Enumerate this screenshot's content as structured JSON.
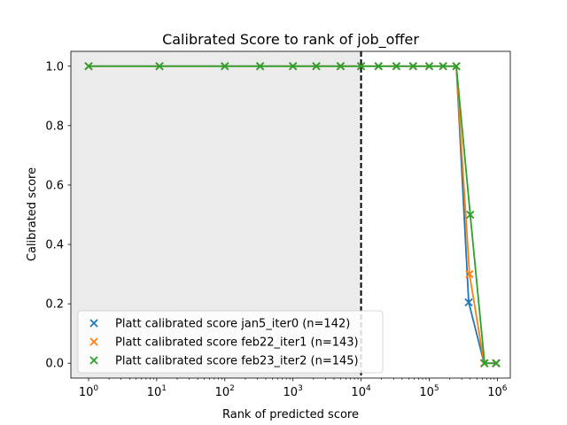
{
  "chart_data": {
    "type": "line",
    "title": "Calibrated Score to rank of job_offer",
    "xlabel": "Rank of predicted score",
    "ylabel": "Calibrated score",
    "xscale": "log",
    "xlim": [
      0.55,
      1550000
    ],
    "ylim": [
      -0.05,
      1.05
    ],
    "xticks": [
      {
        "value": 1,
        "base": "10",
        "exp": "0"
      },
      {
        "value": 10,
        "base": "10",
        "exp": "1"
      },
      {
        "value": 100,
        "base": "10",
        "exp": "2"
      },
      {
        "value": 1000,
        "base": "10",
        "exp": "3"
      },
      {
        "value": 10000,
        "base": "10",
        "exp": "4"
      },
      {
        "value": 100000,
        "base": "10",
        "exp": "5"
      },
      {
        "value": 1000000,
        "base": "10",
        "exp": "6"
      }
    ],
    "yticks": [
      {
        "value": 0.0,
        "label": "0.0"
      },
      {
        "value": 0.2,
        "label": "0.2"
      },
      {
        "value": 0.4,
        "label": "0.4"
      },
      {
        "value": 0.6,
        "label": "0.6"
      },
      {
        "value": 0.8,
        "label": "0.8"
      },
      {
        "value": 1.0,
        "label": "1.0"
      }
    ],
    "shaded_region": {
      "x_from": 0.55,
      "x_to": 10000,
      "color": "#ebebeb"
    },
    "vline": {
      "x": 10000,
      "style": "dashed",
      "color": "#000000"
    },
    "legend_position": "lower-left",
    "series": [
      {
        "name": "Platt calibrated score jan5_iter0 (n=142)",
        "color": "#1f77b4",
        "x": [
          1,
          11,
          100,
          330,
          1000,
          2200,
          5000,
          10000,
          18000,
          33000,
          58000,
          100000,
          160000,
          250000,
          380000,
          640000,
          950000
        ],
        "y": [
          1,
          1,
          1,
          1,
          1,
          1,
          1,
          1,
          1,
          1,
          1,
          1,
          1,
          1,
          0.205,
          0.0,
          0.0
        ]
      },
      {
        "name": "Platt calibrated score feb22_iter1 (n=143)",
        "color": "#ff7f0e",
        "x": [
          1,
          11,
          100,
          330,
          1000,
          2200,
          5000,
          10000,
          18000,
          33000,
          58000,
          100000,
          160000,
          250000,
          390000,
          640000,
          960000
        ],
        "y": [
          1,
          1,
          1,
          1,
          1,
          1,
          1,
          1,
          1,
          1,
          1,
          1,
          1,
          1,
          0.3,
          0.0,
          0.0
        ]
      },
      {
        "name": "Platt calibrated score feb23_iter2 (n=145)",
        "color": "#2ca02c",
        "x": [
          1,
          11,
          100,
          330,
          1000,
          2200,
          5000,
          10000,
          18000,
          33000,
          58000,
          100000,
          160000,
          250000,
          400000,
          650000,
          970000
        ],
        "y": [
          1,
          1,
          1,
          1,
          1,
          1,
          1,
          1,
          1,
          1,
          1,
          1,
          1,
          1,
          0.5,
          0.0,
          0.0
        ]
      }
    ]
  }
}
